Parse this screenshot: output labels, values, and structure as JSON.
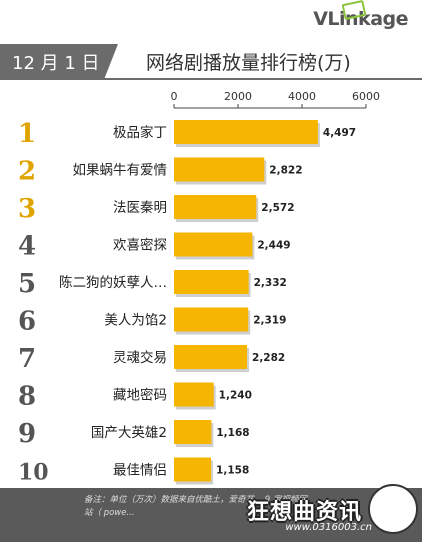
{
  "brand": {
    "logo_text": "VLinkage"
  },
  "header": {
    "date": "12 月 1 日",
    "title": "网络剧播放量排行榜(万)"
  },
  "colors": {
    "bar": "#f5b500",
    "rank": "#e0a400",
    "header_gray": "#6b6b6b"
  },
  "chart_data": {
    "type": "bar",
    "orientation": "horizontal",
    "title": "网络剧播放量排行榜(万)",
    "ranks": [
      "1",
      "2",
      "3",
      "4",
      "5",
      "6",
      "7",
      "8",
      "9",
      "10"
    ],
    "categories": [
      "极品家丁",
      "如果蜗牛有爱情",
      "法医秦明",
      "欢喜密探",
      "陈二狗的妖孽人…",
      "美人为馅2",
      "灵魂交易",
      "藏地密码",
      "国产大英雄2",
      "最佳情侣"
    ],
    "values": [
      4497,
      2822,
      2572,
      2449,
      2332,
      2319,
      2282,
      1240,
      1168,
      1158
    ],
    "value_labels": [
      "4,497",
      "2,822",
      "2,572",
      "2,449",
      "2,332",
      "2,319",
      "2,282",
      "1,240",
      "1,168",
      "1,158"
    ],
    "xlim": [
      0,
      6000
    ],
    "xticks": [
      0,
      2000,
      4000,
      6000
    ],
    "xtick_labels": [
      "0",
      "2000",
      "4000",
      "6000"
    ],
    "axis_position": "top",
    "grid": false
  },
  "footer": {
    "note": "备注：单位（万次）数据来自优酷土，爱奇艺... 9 家视频网站（ powe...",
    "watermark": "狂想曲资讯",
    "watermark_url": "www.0316003.cn"
  }
}
